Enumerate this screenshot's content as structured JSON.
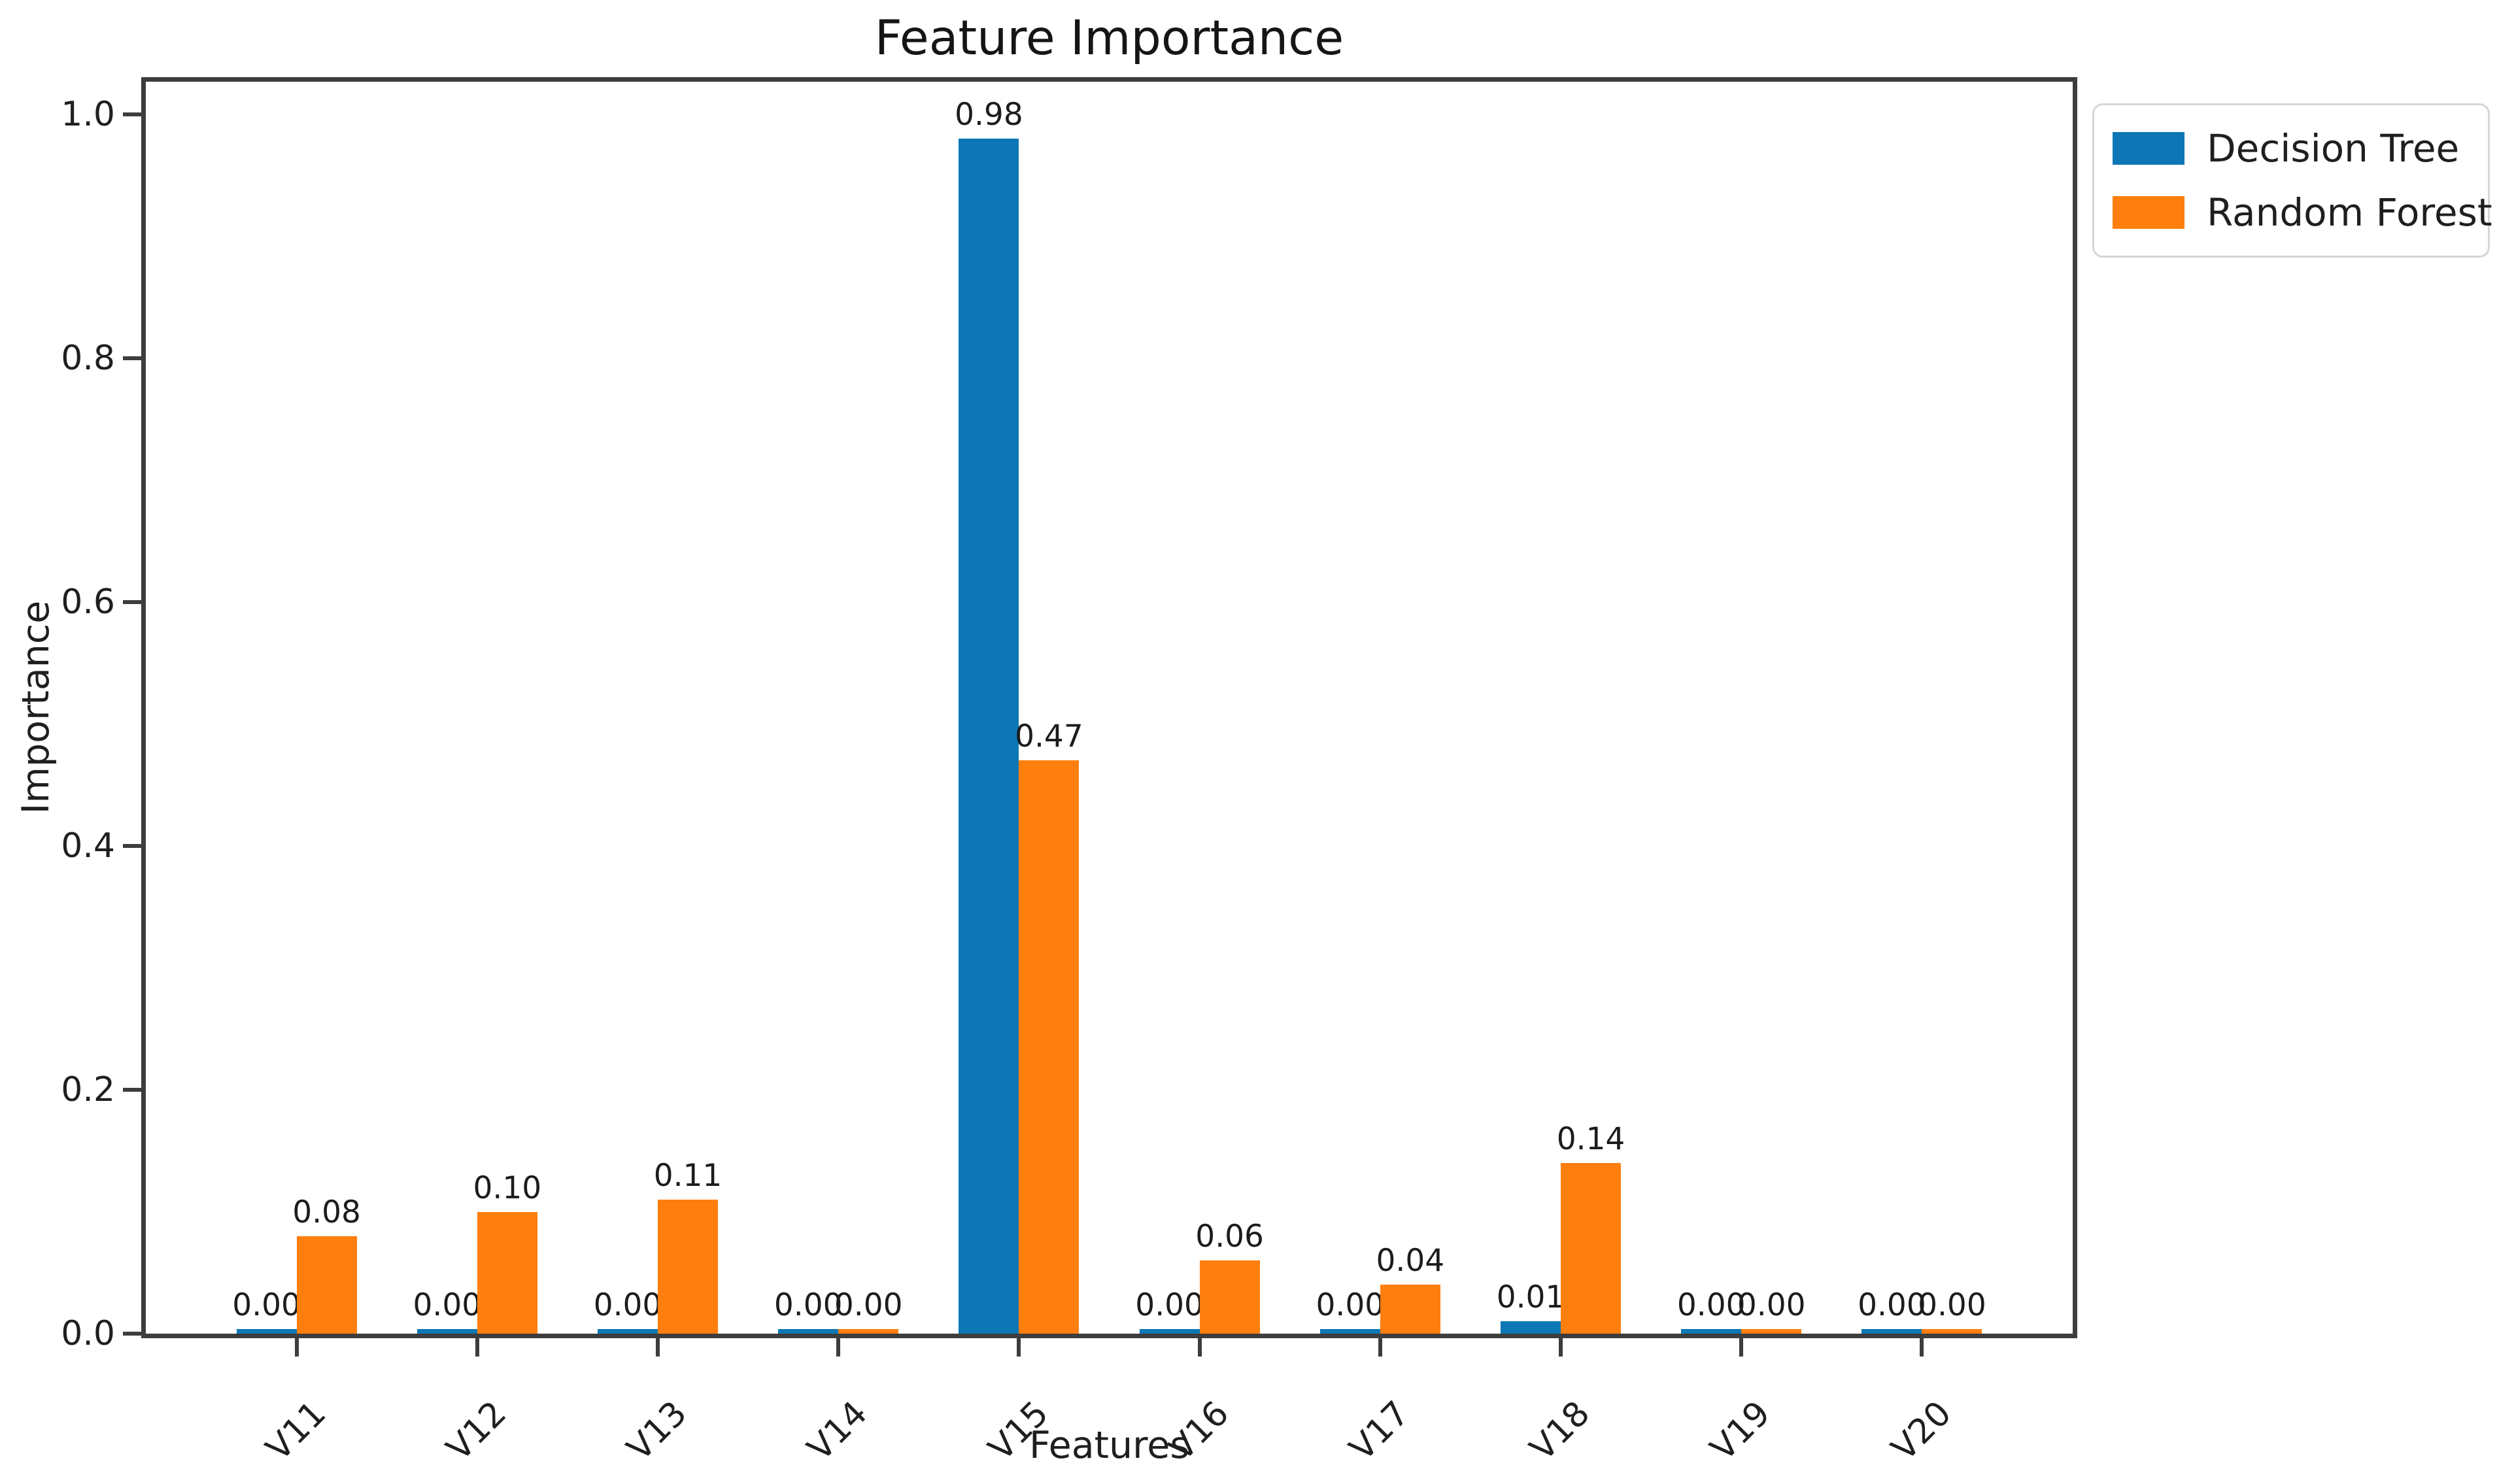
{
  "chart_data": {
    "type": "bar",
    "title": "Feature Importance",
    "xlabel": "Features",
    "ylabel": "Importance",
    "categories": [
      "V11",
      "V12",
      "V13",
      "V14",
      "V15",
      "V16",
      "V17",
      "V18",
      "V19",
      "V20"
    ],
    "series": [
      {
        "name": "Decision Tree",
        "color": "#0c77b4",
        "values": [
          0.0,
          0.0,
          0.0,
          0.0,
          0.98,
          0.0,
          0.0,
          0.01,
          0.0,
          0.0
        ],
        "labels": [
          "0.00",
          "0.00",
          "0.00",
          "0.00",
          "0.98",
          "0.00",
          "0.00",
          "0.01",
          "0.00",
          "0.00"
        ]
      },
      {
        "name": "Random Forest",
        "color": "#fe7f0e",
        "values": [
          0.08,
          0.1,
          0.11,
          0.0,
          0.47,
          0.06,
          0.04,
          0.14,
          0.0,
          0.0
        ],
        "labels": [
          "0.08",
          "0.10",
          "0.11",
          "0.00",
          "0.47",
          "0.06",
          "0.04",
          "0.14",
          "0.00",
          "0.00"
        ]
      }
    ],
    "yticks": [
      "0.0",
      "0.2",
      "0.4",
      "0.6",
      "0.8",
      "1.0"
    ],
    "ylim": [
      0,
      1.03
    ],
    "grid": false,
    "legend_position": "upper-right-outside",
    "bar_value_labels_shown": true
  }
}
